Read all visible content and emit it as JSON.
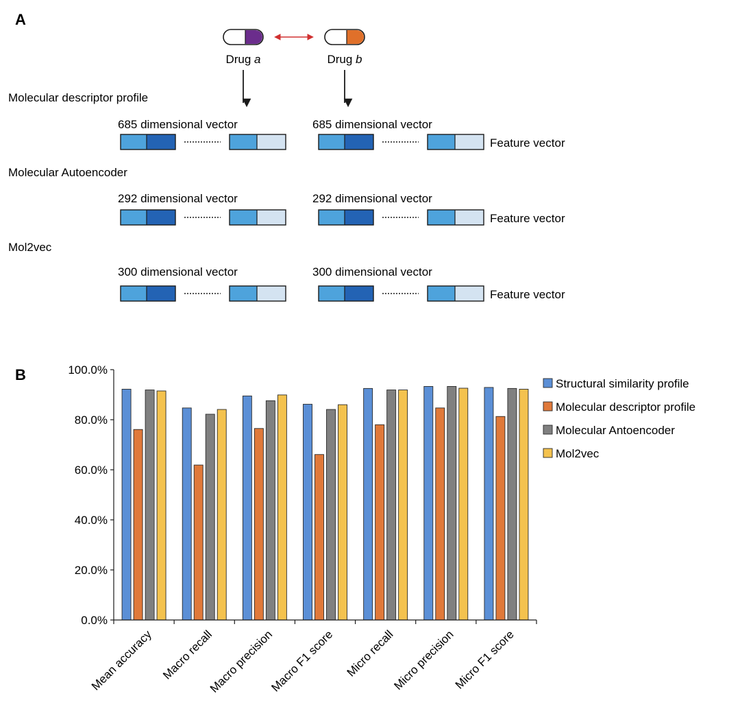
{
  "panel_a": {
    "label": "A",
    "drug_a": {
      "prefix": "Drug ",
      "letter": "a",
      "color": "#6b2d8c"
    },
    "drug_b": {
      "prefix": "Drug ",
      "letter": "b",
      "color": "#e0702a"
    },
    "feature_label": "Feature vector",
    "sections": [
      {
        "title": "Molecular descriptor profile",
        "vector_label": "685 dimensional vector"
      },
      {
        "title": "Molecular Autoencoder",
        "vector_label": "292 dimensional vector"
      },
      {
        "title": "Mol2vec",
        "vector_label": "300 dimensional vector"
      }
    ],
    "colors": {
      "light": "#4ea3dc",
      "dark": "#2363b4",
      "pale": "#d4e3f1",
      "arrow": "#d03030"
    }
  },
  "panel_b": {
    "label": "B"
  },
  "chart_data": {
    "type": "bar",
    "categories": [
      "Mean accuracy",
      "Macro recall",
      "Macro precision",
      "Macro F1 score",
      "Micro recall",
      "Micro precision",
      "Micro F1 score"
    ],
    "series": [
      {
        "name": "Structural similarity profile",
        "color": "#5b8fd6",
        "values": [
          92.2,
          84.7,
          89.5,
          86.2,
          92.5,
          93.3,
          92.9
        ]
      },
      {
        "name": "Molecular descriptor profile",
        "color": "#e0793a",
        "values": [
          76.1,
          61.9,
          76.5,
          66.1,
          78.0,
          84.7,
          81.3
        ]
      },
      {
        "name": "Molecular Antoencoder",
        "color": "#808080",
        "values": [
          91.9,
          82.2,
          87.6,
          84.1,
          91.9,
          93.3,
          92.5
        ]
      },
      {
        "name": "Mol2vec",
        "color": "#f4c24e",
        "values": [
          91.5,
          84.1,
          89.9,
          86.0,
          91.9,
          92.6,
          92.2
        ]
      }
    ],
    "yticks": [
      "0.0%",
      "20.0%",
      "40.0%",
      "60.0%",
      "80.0%",
      "100.0%"
    ],
    "ylim": [
      0,
      100
    ],
    "legend": "right",
    "grid": false
  }
}
